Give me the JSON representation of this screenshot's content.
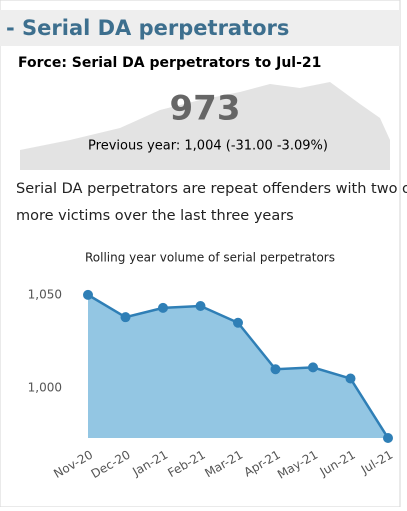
{
  "header": {
    "title": "- Serial DA perpetrators",
    "subtitle": "Force: Serial DA perpetrators to Jul-21"
  },
  "kpi": {
    "value": "973",
    "comparison": "Previous year: 1,004 (-31.00 -3.09%)"
  },
  "description": "Serial DA perpetrators are repeat offenders with two or more victims over the last three years",
  "chart_data": {
    "type": "area",
    "title": "Rolling year volume of serial perpetrators",
    "categories": [
      "Nov-20",
      "Dec-20",
      "Jan-21",
      "Feb-21",
      "Mar-21",
      "Apr-21",
      "May-21",
      "Jun-21",
      "Jul-21"
    ],
    "values": [
      1050,
      1038,
      1043,
      1044,
      1035,
      1010,
      1011,
      1005,
      973
    ],
    "color": "#2f7fb6",
    "fill": "#93c6e3",
    "ylim": [
      973,
      1058
    ],
    "yticks": [
      {
        "value": 1000,
        "label": "1,000"
      },
      {
        "value": 1050,
        "label": "1,050"
      }
    ],
    "grid": false
  }
}
